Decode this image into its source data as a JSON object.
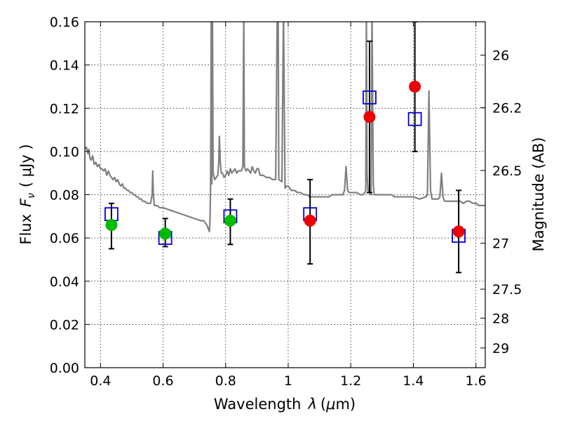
{
  "chart_data": {
    "type": "scatter",
    "xlabel_prefix": "Wavelength",
    "xlabel_symbol": "λ",
    "xlabel_unit_open": "(",
    "xlabel_unit_mu": "μ",
    "xlabel_unit_rest": "m)",
    "ylabel_left": "Flux",
    "ylabel_symbol": "F",
    "ylabel_subscript": "ν",
    "ylabel_unit": "( μJy )",
    "ylabel_right": "Magnitude (AB)",
    "xlim": [
      0.35,
      1.63
    ],
    "ylim": [
      0.0,
      0.16
    ],
    "x_ticks": [
      {
        "value": 0.4,
        "label": "0.4"
      },
      {
        "value": 0.6,
        "label": "0.6"
      },
      {
        "value": 0.8,
        "label": "0.8"
      },
      {
        "value": 1.0,
        "label": "1"
      },
      {
        "value": 1.2,
        "label": "1.2"
      },
      {
        "value": 1.4,
        "label": "1.4"
      },
      {
        "value": 1.6,
        "label": "1.6"
      }
    ],
    "y_ticks": [
      {
        "value": 0.0,
        "label": "0.00"
      },
      {
        "value": 0.02,
        "label": "0.02"
      },
      {
        "value": 0.04,
        "label": "0.04"
      },
      {
        "value": 0.06,
        "label": "0.06"
      },
      {
        "value": 0.08,
        "label": "0.08"
      },
      {
        "value": 0.1,
        "label": "0.10"
      },
      {
        "value": 0.12,
        "label": "0.12"
      },
      {
        "value": 0.14,
        "label": "0.14"
      },
      {
        "value": 0.16,
        "label": "0.16"
      }
    ],
    "mag_ticks": [
      {
        "value": 26,
        "label": "26"
      },
      {
        "value": 26.2,
        "label": "26.2"
      },
      {
        "value": 26.5,
        "label": "26.5"
      },
      {
        "value": 27,
        "label": "27"
      },
      {
        "value": 27.5,
        "label": "27.5"
      },
      {
        "value": 28,
        "label": "28"
      },
      {
        "value": 29,
        "label": "29"
      }
    ],
    "grid": true,
    "model_spectrum": {
      "color": "#808080",
      "points": [
        [
          0.35,
          0.101
        ],
        [
          0.355,
          0.102
        ],
        [
          0.36,
          0.099
        ],
        [
          0.363,
          0.101
        ],
        [
          0.366,
          0.097
        ],
        [
          0.37,
          0.096
        ],
        [
          0.375,
          0.098
        ],
        [
          0.38,
          0.094
        ],
        [
          0.385,
          0.095
        ],
        [
          0.39,
          0.093
        ],
        [
          0.395,
          0.094
        ],
        [
          0.4,
          0.092
        ],
        [
          0.405,
          0.092
        ],
        [
          0.41,
          0.091
        ],
        [
          0.415,
          0.092
        ],
        [
          0.42,
          0.089
        ],
        [
          0.425,
          0.091
        ],
        [
          0.43,
          0.089
        ],
        [
          0.435,
          0.088
        ],
        [
          0.44,
          0.087
        ],
        [
          0.445,
          0.088
        ],
        [
          0.45,
          0.086
        ],
        [
          0.455,
          0.087
        ],
        [
          0.46,
          0.085
        ],
        [
          0.465,
          0.084
        ],
        [
          0.47,
          0.085
        ],
        [
          0.475,
          0.083
        ],
        [
          0.48,
          0.083
        ],
        [
          0.485,
          0.082
        ],
        [
          0.49,
          0.082
        ],
        [
          0.495,
          0.081
        ],
        [
          0.5,
          0.081
        ],
        [
          0.505,
          0.08
        ],
        [
          0.51,
          0.08
        ],
        [
          0.515,
          0.079
        ],
        [
          0.52,
          0.079
        ],
        [
          0.525,
          0.078
        ],
        [
          0.53,
          0.078
        ],
        [
          0.535,
          0.077
        ],
        [
          0.54,
          0.077
        ],
        [
          0.55,
          0.076
        ],
        [
          0.56,
          0.076
        ],
        [
          0.565,
          0.08
        ],
        [
          0.567,
          0.091
        ],
        [
          0.569,
          0.08
        ],
        [
          0.572,
          0.075
        ],
        [
          0.58,
          0.075
        ],
        [
          0.59,
          0.074
        ],
        [
          0.6,
          0.074
        ],
        [
          0.62,
          0.073
        ],
        [
          0.64,
          0.072
        ],
        [
          0.66,
          0.071
        ],
        [
          0.68,
          0.07
        ],
        [
          0.7,
          0.069
        ],
        [
          0.72,
          0.068
        ],
        [
          0.73,
          0.068
        ],
        [
          0.74,
          0.066
        ],
        [
          0.745,
          0.064
        ],
        [
          0.748,
          0.063
        ],
        [
          0.75,
          0.068
        ],
        [
          0.752,
          0.085
        ],
        [
          0.754,
          0.165
        ],
        [
          0.756,
          0.085
        ],
        [
          0.758,
          0.165
        ],
        [
          0.76,
          0.09
        ],
        [
          0.765,
          0.087
        ],
        [
          0.77,
          0.088
        ],
        [
          0.775,
          0.089
        ],
        [
          0.778,
          0.095
        ],
        [
          0.78,
          0.107
        ],
        [
          0.783,
          0.095
        ],
        [
          0.786,
          0.09
        ],
        [
          0.79,
          0.09
        ],
        [
          0.795,
          0.088
        ],
        [
          0.8,
          0.089
        ],
        [
          0.805,
          0.091
        ],
        [
          0.81,
          0.089
        ],
        [
          0.815,
          0.092
        ],
        [
          0.82,
          0.09
        ],
        [
          0.825,
          0.091
        ],
        [
          0.83,
          0.092
        ],
        [
          0.835,
          0.09
        ],
        [
          0.84,
          0.091
        ],
        [
          0.85,
          0.091
        ],
        [
          0.855,
          0.093
        ],
        [
          0.858,
          0.165
        ],
        [
          0.86,
          0.093
        ],
        [
          0.865,
          0.091
        ],
        [
          0.87,
          0.092
        ],
        [
          0.88,
          0.09
        ],
        [
          0.885,
          0.093
        ],
        [
          0.888,
          0.092
        ],
        [
          0.89,
          0.091
        ],
        [
          0.895,
          0.09
        ],
        [
          0.9,
          0.092
        ],
        [
          0.905,
          0.092
        ],
        [
          0.91,
          0.089
        ],
        [
          0.92,
          0.089
        ],
        [
          0.93,
          0.088
        ],
        [
          0.94,
          0.088
        ],
        [
          0.95,
          0.087
        ],
        [
          0.96,
          0.087
        ],
        [
          0.965,
          0.165
        ],
        [
          0.968,
          0.165
        ],
        [
          0.97,
          0.087
        ],
        [
          0.98,
          0.086
        ],
        [
          0.985,
          0.165
        ],
        [
          0.99,
          0.083
        ],
        [
          0.995,
          0.084
        ],
        [
          1.0,
          0.084
        ],
        [
          1.005,
          0.083
        ],
        [
          1.01,
          0.082
        ],
        [
          1.02,
          0.082
        ],
        [
          1.03,
          0.081
        ],
        [
          1.04,
          0.081
        ],
        [
          1.05,
          0.08
        ],
        [
          1.06,
          0.08
        ],
        [
          1.07,
          0.079
        ],
        [
          1.08,
          0.079
        ],
        [
          1.09,
          0.079
        ],
        [
          1.1,
          0.079
        ],
        [
          1.11,
          0.079
        ],
        [
          1.12,
          0.079
        ],
        [
          1.13,
          0.079
        ],
        [
          1.14,
          0.08
        ],
        [
          1.15,
          0.08
        ],
        [
          1.16,
          0.08
        ],
        [
          1.17,
          0.08
        ],
        [
          1.175,
          0.08
        ],
        [
          1.18,
          0.082
        ],
        [
          1.185,
          0.093
        ],
        [
          1.19,
          0.082
        ],
        [
          1.195,
          0.081
        ],
        [
          1.2,
          0.081
        ],
        [
          1.21,
          0.081
        ],
        [
          1.22,
          0.081
        ],
        [
          1.23,
          0.08
        ],
        [
          1.24,
          0.08
        ],
        [
          1.245,
          0.081
        ],
        [
          1.248,
          0.082
        ],
        [
          1.25,
          0.165
        ],
        [
          1.252,
          0.09
        ],
        [
          1.255,
          0.082
        ],
        [
          1.26,
          0.081
        ],
        [
          1.265,
          0.08
        ],
        [
          1.268,
          0.165
        ],
        [
          1.272,
          0.085
        ],
        [
          1.275,
          0.08
        ],
        [
          1.28,
          0.08
        ],
        [
          1.29,
          0.08
        ],
        [
          1.3,
          0.08
        ],
        [
          1.31,
          0.08
        ],
        [
          1.32,
          0.08
        ],
        [
          1.33,
          0.08
        ],
        [
          1.34,
          0.079
        ],
        [
          1.35,
          0.079
        ],
        [
          1.36,
          0.079
        ],
        [
          1.37,
          0.079
        ],
        [
          1.38,
          0.079
        ],
        [
          1.39,
          0.079
        ],
        [
          1.4,
          0.079
        ],
        [
          1.42,
          0.078
        ],
        [
          1.44,
          0.079
        ],
        [
          1.445,
          0.08
        ],
        [
          1.45,
          0.128
        ],
        [
          1.455,
          0.082
        ],
        [
          1.46,
          0.078
        ],
        [
          1.47,
          0.078
        ],
        [
          1.48,
          0.078
        ],
        [
          1.485,
          0.079
        ],
        [
          1.49,
          0.09
        ],
        [
          1.495,
          0.079
        ],
        [
          1.5,
          0.077
        ],
        [
          1.51,
          0.077
        ],
        [
          1.52,
          0.077
        ],
        [
          1.53,
          0.077
        ],
        [
          1.54,
          0.077
        ],
        [
          1.55,
          0.077
        ],
        [
          1.56,
          0.076
        ],
        [
          1.57,
          0.077
        ],
        [
          1.58,
          0.077
        ],
        [
          1.59,
          0.076
        ],
        [
          1.6,
          0.076
        ],
        [
          1.61,
          0.075
        ],
        [
          1.62,
          0.075
        ],
        [
          1.63,
          0.075
        ]
      ]
    },
    "squares": {
      "color": "#0000cc",
      "points": [
        {
          "x": 0.435,
          "y": 0.071
        },
        {
          "x": 0.607,
          "y": 0.06
        },
        {
          "x": 0.815,
          "y": 0.07
        },
        {
          "x": 1.07,
          "y": 0.071
        },
        {
          "x": 1.26,
          "y": 0.125
        },
        {
          "x": 1.405,
          "y": 0.115
        },
        {
          "x": 1.545,
          "y": 0.061
        }
      ]
    },
    "error_bars": [
      {
        "x": 0.435,
        "low": 0.055,
        "high": 0.076
      },
      {
        "x": 0.607,
        "low": 0.056,
        "high": 0.069
      },
      {
        "x": 0.815,
        "low": 0.057,
        "high": 0.078
      },
      {
        "x": 1.07,
        "low": 0.048,
        "high": 0.087
      },
      {
        "x": 1.26,
        "low": 0.081,
        "high": 0.151
      },
      {
        "x": 1.405,
        "low": 0.1,
        "high": 0.16
      },
      {
        "x": 1.545,
        "low": 0.044,
        "high": 0.082
      }
    ],
    "green_points": {
      "color": "#00bb00",
      "points": [
        {
          "x": 0.435,
          "y": 0.066
        },
        {
          "x": 0.607,
          "y": 0.062
        },
        {
          "x": 0.815,
          "y": 0.068
        }
      ]
    },
    "red_points": {
      "color": "#ee0000",
      "points": [
        {
          "x": 1.07,
          "y": 0.068
        },
        {
          "x": 1.26,
          "y": 0.116
        },
        {
          "x": 1.405,
          "y": 0.13
        },
        {
          "x": 1.545,
          "y": 0.063
        }
      ]
    }
  }
}
